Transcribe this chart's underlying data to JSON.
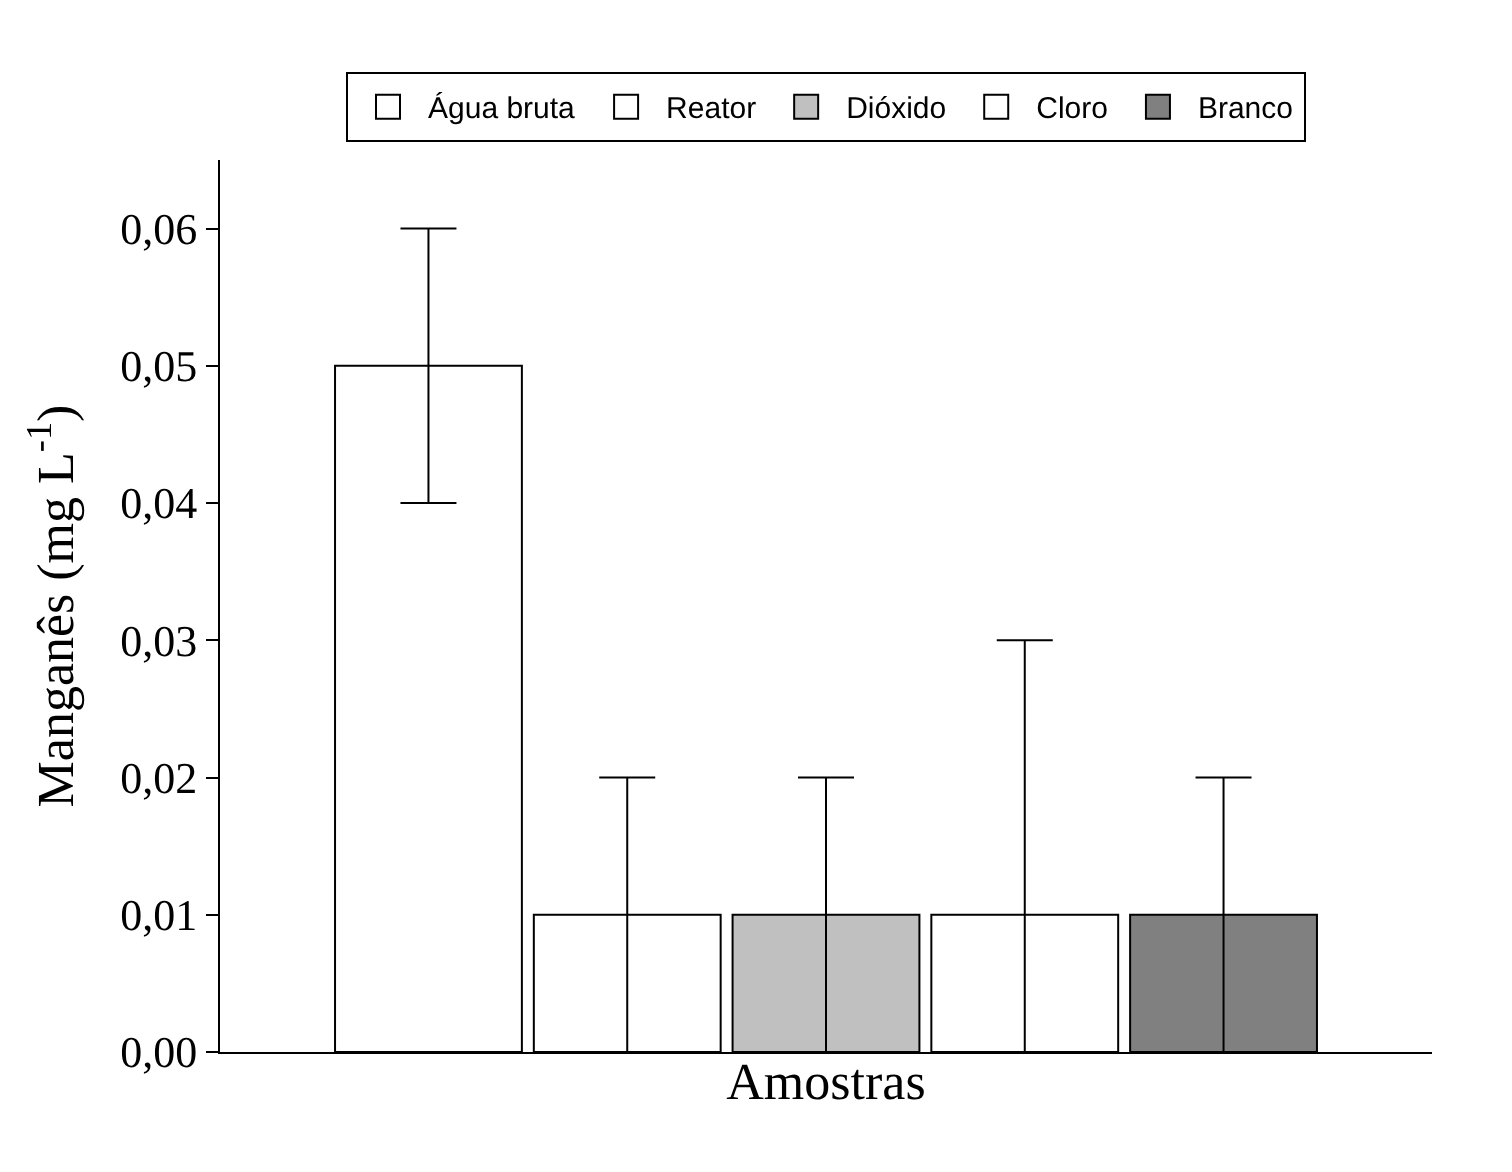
{
  "chart_data": {
    "type": "bar",
    "xlabel": "Amostras",
    "ylabel": "Manganês (mg L$^{-1}$)",
    "categories": [
      null
    ],
    "series": [
      {
        "name": "Água bruta",
        "color": "#ffffff",
        "values": [
          0.05
        ],
        "errors": [
          [
            0.04,
            0.06
          ]
        ]
      },
      {
        "name": "Reator",
        "color": "#ffffff",
        "values": [
          0.01
        ],
        "errors": [
          [
            0,
            0.02
          ]
        ]
      },
      {
        "name": "Dióxido",
        "color": "#c0c0c0",
        "values": [
          0.01
        ],
        "errors": [
          [
            0,
            0.02
          ]
        ]
      },
      {
        "name": "Cloro",
        "color": "#ffffff",
        "values": [
          0.01
        ],
        "errors": [
          [
            0,
            0.03
          ]
        ]
      },
      {
        "name": "Branco",
        "color": "#808080",
        "values": [
          0.01
        ],
        "errors": [
          [
            0,
            0.02
          ]
        ]
      }
    ],
    "ylim": [
      0,
      0.065
    ],
    "yticks": [
      {
        "value": 0,
        "label": "0,00"
      },
      {
        "value": 0.01,
        "label": "0,01"
      },
      {
        "value": 0.02,
        "label": "0,02"
      },
      {
        "value": 0.03,
        "label": "0,03"
      },
      {
        "value": 0.04,
        "label": "0,04"
      },
      {
        "value": 0.05,
        "label": "0,05"
      },
      {
        "value": 0.06,
        "label": "0,06"
      }
    ],
    "tick_labels": "y",
    "legend": "top"
  }
}
